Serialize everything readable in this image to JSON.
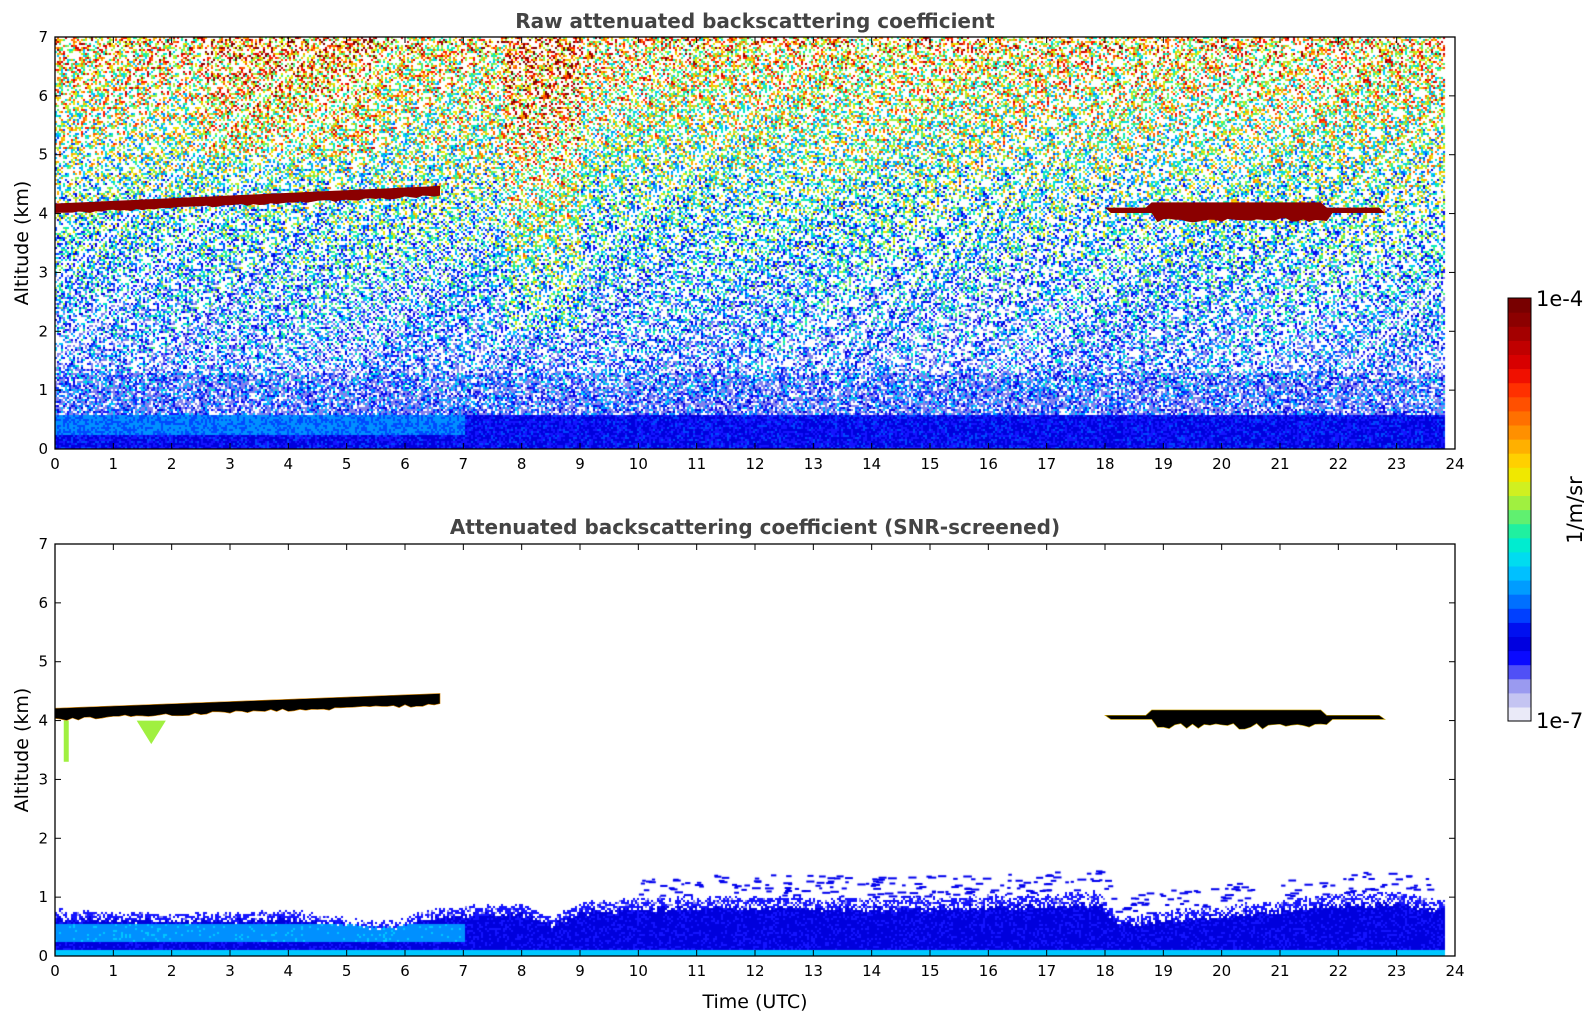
{
  "chart_data": [
    {
      "type": "heatmap",
      "title": "Raw attenuated backscattering coefficient",
      "xlabel": "",
      "ylabel": "Altitude (km)",
      "xlim": [
        0,
        24
      ],
      "ylim": [
        0,
        7
      ],
      "x_ticks": [
        "0",
        "1",
        "2",
        "3",
        "4",
        "5",
        "6",
        "7",
        "8",
        "9",
        "10",
        "11",
        "12",
        "13",
        "14",
        "15",
        "16",
        "17",
        "18",
        "19",
        "20",
        "21",
        "22",
        "23",
        "24"
      ],
      "y_ticks": [
        "0",
        "1",
        "2",
        "3",
        "4",
        "5",
        "6",
        "7"
      ],
      "data_extent_x": [
        0,
        23.8
      ],
      "layers": [
        {
          "feature": "surface_layer",
          "x": [
            0,
            23.8
          ],
          "altitude_top": 0.6,
          "level": "low"
        },
        {
          "feature": "cloud",
          "x": [
            0.0,
            6.6
          ],
          "altitude_start": 4.1,
          "altitude_end": 4.4,
          "level": "max"
        },
        {
          "feature": "cloud",
          "x": [
            18.0,
            22.8
          ],
          "altitude": 4.05,
          "level": "max"
        },
        {
          "feature": "noise_region",
          "x": [
            0,
            23.8
          ],
          "altitude": [
            1,
            7
          ],
          "note": "noisy signal increasing with altitude"
        }
      ]
    },
    {
      "type": "heatmap",
      "title": "Attenuated backscattering coefficient (SNR-screened)",
      "xlabel": "Time (UTC)",
      "ylabel": "Altitude (km)",
      "xlim": [
        0,
        24
      ],
      "ylim": [
        0,
        7
      ],
      "x_ticks": [
        "0",
        "1",
        "2",
        "3",
        "4",
        "5",
        "6",
        "7",
        "8",
        "9",
        "10",
        "11",
        "12",
        "13",
        "14",
        "15",
        "16",
        "17",
        "18",
        "19",
        "20",
        "21",
        "22",
        "23",
        "24"
      ],
      "y_ticks": [
        "0",
        "1",
        "2",
        "3",
        "4",
        "5",
        "6",
        "7"
      ],
      "data_extent_x": [
        0,
        23.8
      ],
      "boundary_layer_top": {
        "x": [
          0,
          1,
          2,
          3,
          4,
          5,
          5.8,
          6.5,
          7,
          8,
          8.5,
          9,
          10,
          11,
          12,
          13,
          14,
          15,
          16,
          17,
          17.9,
          18.2,
          19,
          20,
          21,
          22,
          23,
          23.8
        ],
        "top": [
          0.8,
          0.75,
          0.72,
          0.75,
          0.78,
          0.65,
          0.58,
          0.82,
          0.85,
          0.88,
          0.65,
          0.92,
          0.98,
          1.0,
          1.02,
          1.0,
          0.98,
          1.0,
          1.02,
          1.05,
          1.1,
          0.65,
          0.75,
          0.85,
          0.95,
          1.05,
          1.1,
          0.95
        ]
      },
      "clouds": [
        {
          "x": [
            0.0,
            6.6
          ],
          "altitude_start": 4.15,
          "altitude_end": 4.4
        },
        {
          "x": [
            18.0,
            22.8
          ],
          "altitude": 4.05
        }
      ]
    }
  ],
  "colorbar": {
    "label": "1/m/sr",
    "max_label": "1e-4",
    "min_label": "1e-7",
    "colors": [
      "#e8e8f8",
      "#b8b8f0",
      "#8080ee",
      "#1414ff",
      "#0000dd",
      "#0048ff",
      "#0090ff",
      "#00c8ff",
      "#00e8c8",
      "#40f080",
      "#a0f040",
      "#e8e800",
      "#ffb000",
      "#ff6000",
      "#ff1a00",
      "#cc0000",
      "#800000"
    ]
  }
}
